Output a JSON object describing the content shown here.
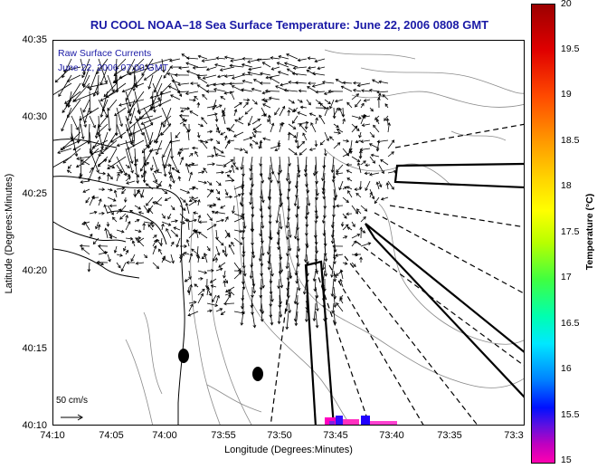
{
  "title": "RU COOL   NOAA–18  Sea Surface Temperature:  June 22, 2006 0808 GMT",
  "inset": {
    "line1": "Raw Surface Currents",
    "line2": "June 22, 2006 07:00 GMT"
  },
  "axes": {
    "xlabel": "Longitude (Degrees:Minutes)",
    "ylabel": "Latitude (Degrees:Minutes)",
    "xticks": [
      "74:10",
      "74:05",
      "74:00",
      "73:55",
      "73:50",
      "73:45",
      "73:40",
      "73:35",
      "73:3"
    ],
    "yticks": [
      "40:35",
      "40:30",
      "40:25",
      "40:20",
      "40:15",
      "40:10"
    ]
  },
  "scale_bar": {
    "label": "50 cm/s"
  },
  "colorbar": {
    "label": "Temperature (°C)",
    "ticks": [
      "20",
      "19.5",
      "19",
      "18.5",
      "18",
      "17.5",
      "17",
      "16.5",
      "16",
      "15.5",
      "15"
    ],
    "range": [
      15,
      20
    ]
  }
}
